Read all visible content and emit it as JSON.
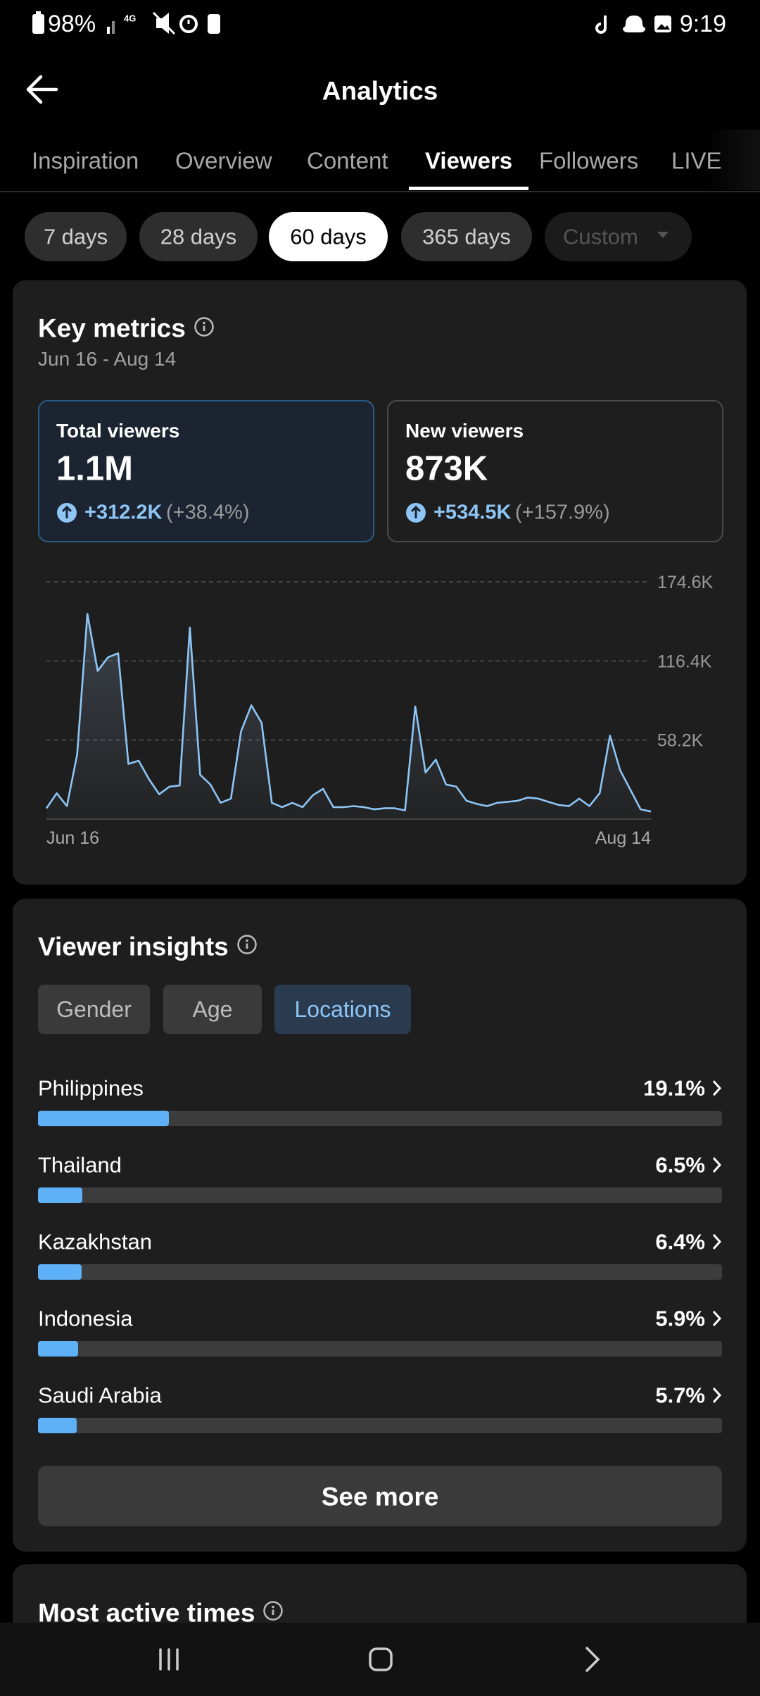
{
  "status_bar": {
    "battery": "98%",
    "network": "4G",
    "time": "9:19"
  },
  "header": {
    "title": "Analytics"
  },
  "tabs": {
    "items": [
      "Inspiration",
      "Overview",
      "Content",
      "Viewers",
      "Followers",
      "LIVE"
    ],
    "active": 3
  },
  "periods": {
    "items": [
      "7 days",
      "28 days",
      "60 days",
      "365 days",
      "Custom"
    ],
    "active": 2
  },
  "key_metrics": {
    "title": "Key metrics",
    "date_range": "Jun 16 - Aug 14",
    "cards": [
      {
        "label": "Total viewers",
        "value": "1.1M",
        "change": "+312.2K",
        "change_pct": "(+38.4%)"
      },
      {
        "label": "New viewers",
        "value": "873K",
        "change": "+534.5K",
        "change_pct": "(+157.9%)"
      }
    ],
    "chart": {
      "type": "line",
      "categories": [
        "Jun 16",
        null,
        null,
        null,
        null,
        null,
        null,
        null,
        null,
        null,
        null,
        null,
        null,
        null,
        null,
        null,
        null,
        null,
        null,
        null,
        null,
        null,
        null,
        null,
        null,
        null,
        null,
        null,
        null,
        null,
        null,
        null,
        null,
        null,
        null,
        null,
        null,
        null,
        null,
        null,
        null,
        null,
        null,
        null,
        null,
        null,
        null,
        null,
        null,
        null,
        null,
        null,
        null,
        null,
        null,
        null,
        null,
        null,
        null,
        "Aug 14"
      ],
      "values": [
        8000,
        19000,
        9600,
        47800,
        151000,
        109000,
        119000,
        122000,
        40600,
        43000,
        29500,
        18300,
        23900,
        24700,
        141000,
        32700,
        25500,
        12000,
        15100,
        64600,
        83700,
        70900,
        12000,
        8800,
        12000,
        8800,
        17500,
        22300,
        8800,
        8800,
        9600,
        8800,
        7200,
        8000,
        8000,
        6400,
        82900,
        34300,
        43800,
        25500,
        23900,
        13500,
        11200,
        9600,
        12000,
        12700,
        13500,
        15900,
        15100,
        12700,
        10400,
        9600,
        15100,
        9600,
        19100,
        61400,
        35900,
        21500,
        7200,
        5600
      ],
      "color": "#8ec5f5",
      "ylim": [
        0,
        174600
      ],
      "yticks": [
        {
          "value": 58200,
          "label": "58.2K"
        },
        {
          "value": 116400,
          "label": "116.4K"
        },
        {
          "value": 174600,
          "label": "174.6K"
        }
      ],
      "grid": true
    }
  },
  "viewer_insights": {
    "title": "Viewer insights",
    "tabs": [
      "Gender",
      "Age",
      "Locations"
    ],
    "active_tab": 2,
    "locations": {
      "type": "bar",
      "categories": [
        "Philippines",
        "Thailand",
        "Kazakhstan",
        "Indonesia",
        "Saudi Arabia"
      ],
      "values": [
        19.1,
        6.5,
        6.4,
        5.9,
        5.7
      ],
      "value_labels": [
        "19.1%",
        "6.5%",
        "6.4%",
        "5.9%",
        "5.7%"
      ],
      "xlim": [
        0,
        100
      ],
      "color": "#5eb0f7"
    },
    "see_more": "See more"
  },
  "most_active_times": {
    "title": "Most active times"
  }
}
